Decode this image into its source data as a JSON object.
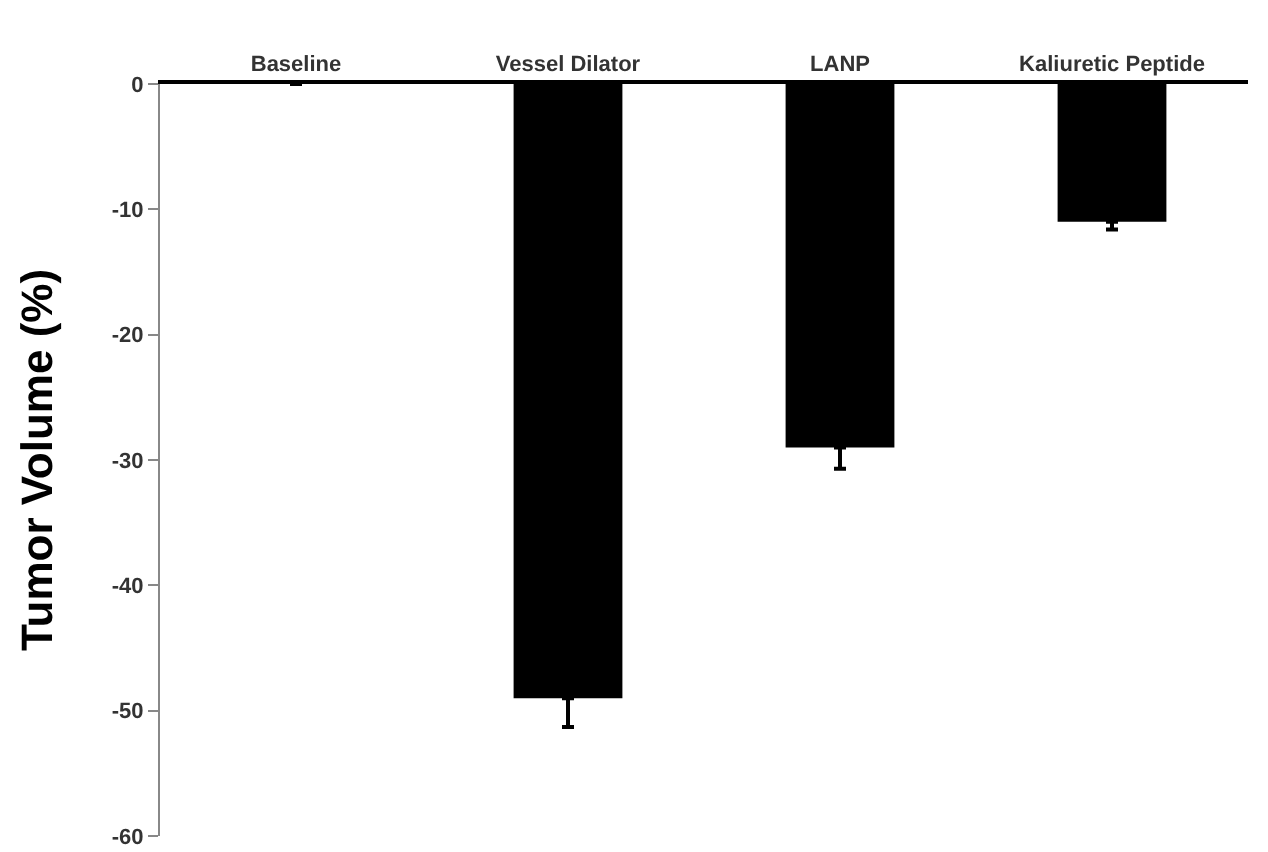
{
  "chart_data": {
    "type": "bar",
    "ylabel": "Tumor Volume (%)",
    "categories": [
      "Baseline",
      "Vessel Dilator",
      "LANP",
      "Kaliuretic Peptide"
    ],
    "values": [
      0,
      -49,
      -29,
      -11
    ],
    "errors": [
      null,
      [
        -51.3,
        -49
      ],
      [
        -30.7,
        -29
      ],
      [
        -11.6,
        -11
      ]
    ],
    "color": "#000000",
    "ylim": [
      -60,
      0
    ],
    "yticks": [
      0,
      -10,
      -20,
      -30,
      -40,
      -50,
      -60
    ],
    "grid": false,
    "legend": false
  }
}
